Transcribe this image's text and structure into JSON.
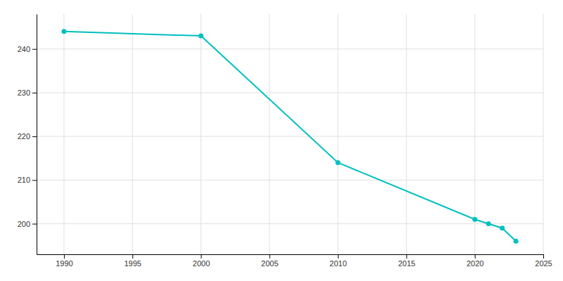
{
  "chart_data": {
    "type": "line",
    "x": [
      1990,
      2000,
      2010,
      2020,
      2021,
      2022,
      2023
    ],
    "values": [
      244,
      243,
      214,
      201,
      200,
      199,
      196
    ],
    "color": "#00BFBF",
    "marker": "circle",
    "xlim": [
      1988,
      2025
    ],
    "ylim": [
      193,
      248
    ],
    "xticks": [
      1990,
      1995,
      2000,
      2005,
      2010,
      2015,
      2020,
      2025
    ],
    "yticks": [
      200,
      210,
      220,
      230,
      240
    ],
    "grid": true
  }
}
